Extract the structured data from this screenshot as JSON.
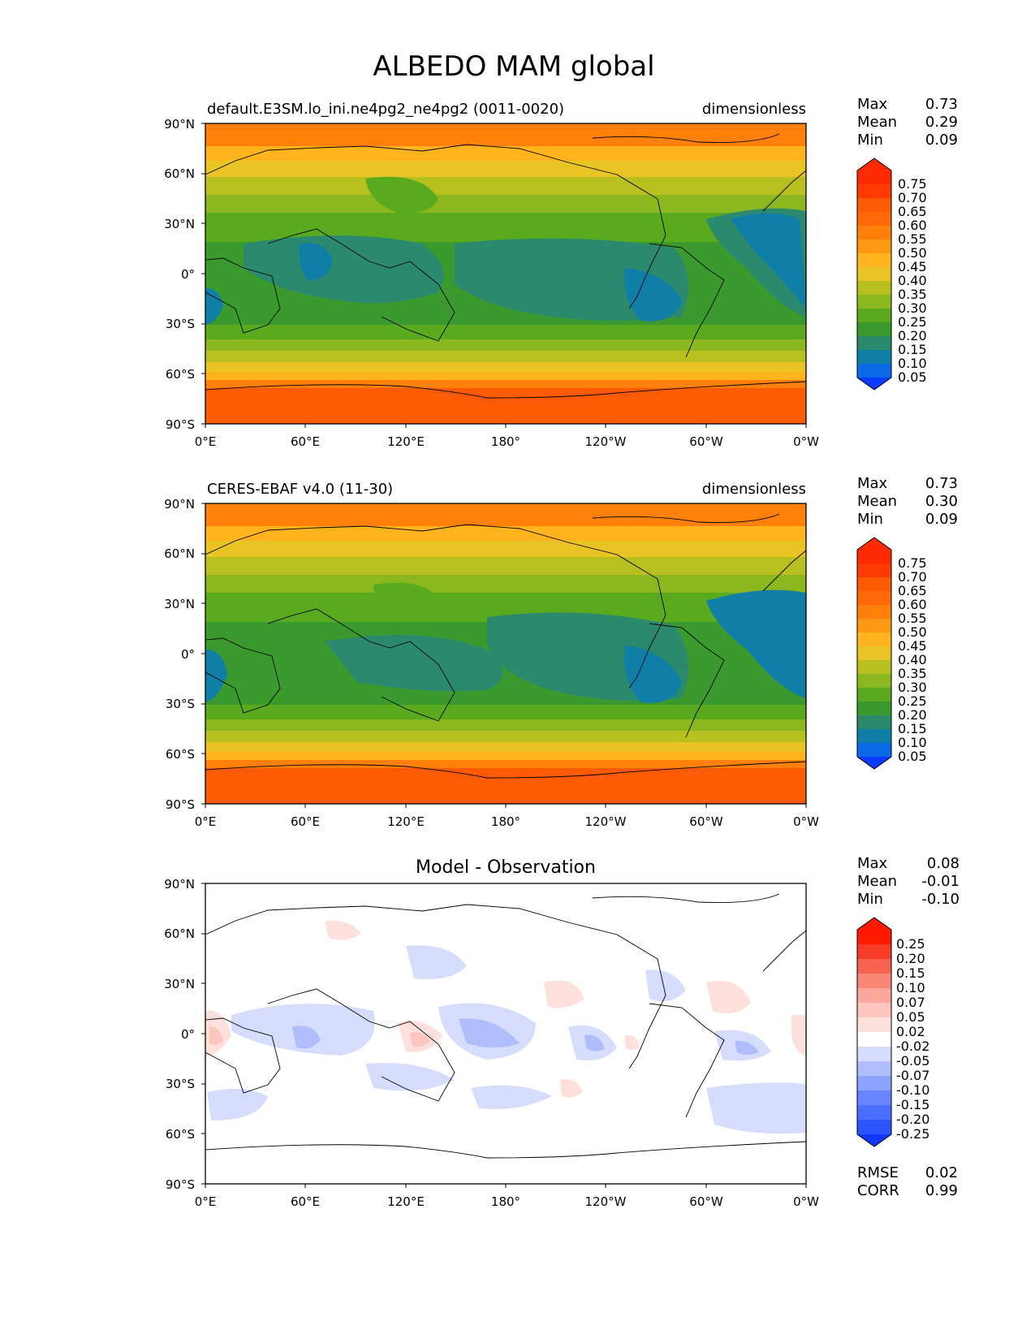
{
  "title": "ALBEDO MAM global",
  "axes": {
    "lat_ticks": [
      "90°N",
      "60°N",
      "30°N",
      "0°",
      "30°S",
      "60°S",
      "90°S"
    ],
    "lon_ticks": [
      "0°E",
      "60°E",
      "120°E",
      "180°",
      "120°W",
      "60°W",
      "0°W"
    ]
  },
  "colors": {
    "field": [
      "#0a3cff",
      "#0a6ae6",
      "#0f7fa8",
      "#2b8a6e",
      "#3a9a2e",
      "#5aaa1e",
      "#8ab81e",
      "#b8c020",
      "#e8c425",
      "#ffb41e",
      "#ff9a14",
      "#ff800a",
      "#ff6806",
      "#ff5a04",
      "#ff3a00",
      "#ff2a00"
    ],
    "diff": [
      "#1038ff",
      "#2c54ff",
      "#4a6eff",
      "#6a86ff",
      "#8ea2ff",
      "#b0bdfb",
      "#d6dcfb",
      "#ffffff",
      "#fde0dc",
      "#fcc6bf",
      "#fba79c",
      "#fa8676",
      "#f86250",
      "#f73c28",
      "#ff1a00"
    ]
  },
  "panels": [
    {
      "left_title": "default.E3SM.lo_ini.ne4pg2_ne4pg2 (0011-0020)",
      "right_title": "dimensionless",
      "center_title": "",
      "stats": [
        {
          "label": "Max",
          "value": "0.73"
        },
        {
          "label": "Mean",
          "value": "0.29"
        },
        {
          "label": "Min",
          "value": "0.09"
        }
      ],
      "colorbar_labels": [
        "0.75",
        "0.70",
        "0.65",
        "0.60",
        "0.55",
        "0.50",
        "0.45",
        "0.40",
        "0.35",
        "0.30",
        "0.25",
        "0.20",
        "0.15",
        "0.10",
        "0.05"
      ],
      "extra_stats": []
    },
    {
      "left_title": "CERES-EBAF v4.0 (11-30)",
      "right_title": "dimensionless",
      "center_title": "",
      "stats": [
        {
          "label": "Max",
          "value": "0.73"
        },
        {
          "label": "Mean",
          "value": "0.30"
        },
        {
          "label": "Min",
          "value": "0.09"
        }
      ],
      "colorbar_labels": [
        "0.75",
        "0.70",
        "0.65",
        "0.60",
        "0.55",
        "0.50",
        "0.45",
        "0.40",
        "0.35",
        "0.30",
        "0.25",
        "0.20",
        "0.15",
        "0.10",
        "0.05"
      ],
      "extra_stats": []
    },
    {
      "left_title": "",
      "right_title": "",
      "center_title": "Model - Observation",
      "stats": [
        {
          "label": "Max",
          "value": "0.08"
        },
        {
          "label": "Mean",
          "value": "-0.01"
        },
        {
          "label": "Min",
          "value": "-0.10"
        }
      ],
      "colorbar_labels": [
        "0.25",
        "0.20",
        "0.15",
        "0.10",
        "0.07",
        "0.05",
        "0.02",
        "-0.02",
        "-0.05",
        "-0.07",
        "-0.10",
        "-0.15",
        "-0.20",
        "-0.25"
      ],
      "extra_stats": [
        {
          "label": "RMSE",
          "value": "0.02"
        },
        {
          "label": "CORR",
          "value": "0.99"
        }
      ]
    }
  ]
}
